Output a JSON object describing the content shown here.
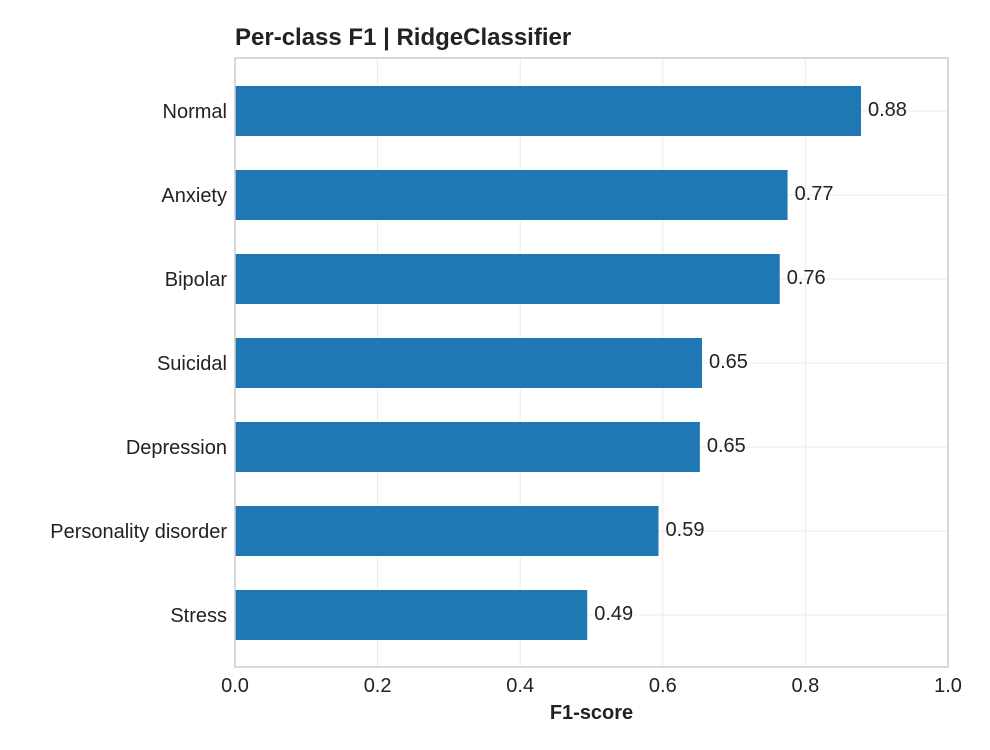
{
  "chart_data": {
    "type": "bar",
    "orientation": "horizontal",
    "title": "Per-class F1 | RidgeClassifier",
    "xlabel": "F1-score",
    "ylabel": "",
    "categories": [
      "Normal",
      "Anxiety",
      "Bipolar",
      "Suicidal",
      "Depression",
      "Personality disorder",
      "Stress"
    ],
    "values": [
      0.878,
      0.775,
      0.764,
      0.655,
      0.652,
      0.594,
      0.494
    ],
    "value_labels": [
      "0.88",
      "0.77",
      "0.76",
      "0.65",
      "0.65",
      "0.59",
      "0.49"
    ],
    "xlim": [
      0.0,
      1.0
    ],
    "xticks": [
      0.0,
      0.2,
      0.4,
      0.6,
      0.8,
      1.0
    ],
    "xtick_labels": [
      "0.0",
      "0.2",
      "0.4",
      "0.6",
      "0.8",
      "1.0"
    ],
    "grid": true,
    "bar_color": "#1f77b4"
  }
}
